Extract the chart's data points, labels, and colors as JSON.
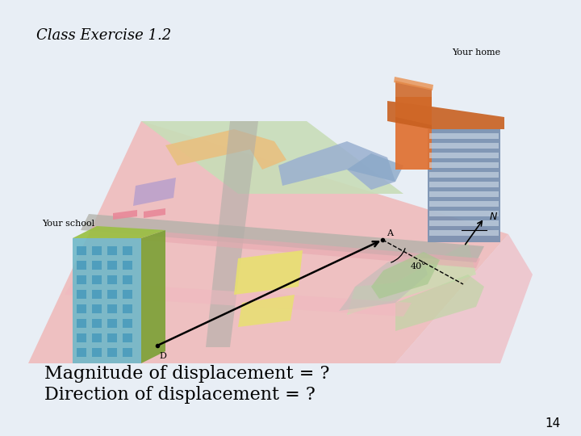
{
  "title": "Class Exercise 1.2",
  "line1": "Magnitude of displacement = ?",
  "line2": "Direction of displacement = ?",
  "page_number": "14",
  "bg_color": "#e8eef5",
  "title_fontsize": 13,
  "text_fontsize": 16,
  "page_fontsize": 11,
  "your_home_label": "Your home",
  "your_school_label": "Your school",
  "label_A": "A",
  "label_D": "D",
  "label_N": "N",
  "label_40": "40°"
}
